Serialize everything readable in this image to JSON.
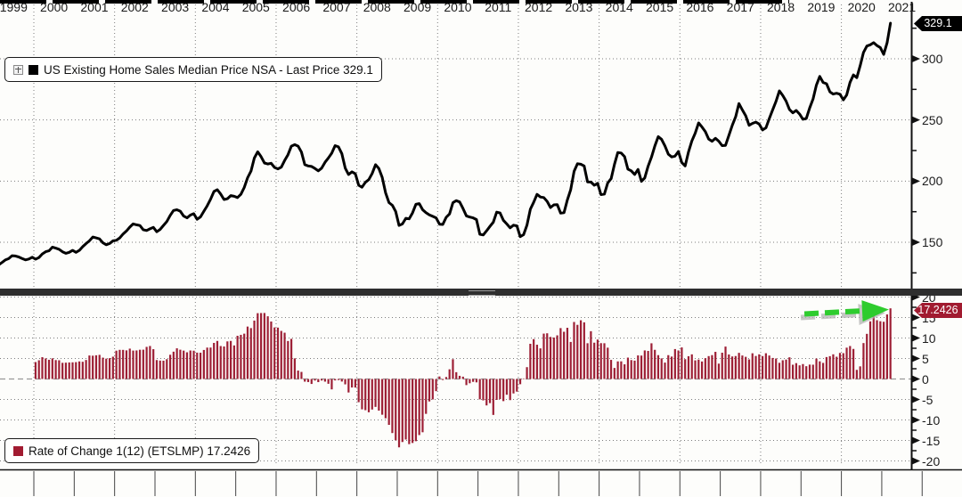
{
  "legend_top": {
    "label": "US Existing Home Sales Median Price NSA - Last Price 329.1",
    "series_color": "#000000"
  },
  "legend_bottom": {
    "label": "Rate of Change 1(12) (ETSLMP) 17.2426",
    "series_color": "#a11b30"
  },
  "price_tag": {
    "value": "329.1",
    "bg": "#000000"
  },
  "roc_tag": {
    "value": "17.2426",
    "bg": "#a11b30"
  },
  "annotation": {
    "green_arrow": {
      "type": "dashed-arrow",
      "direction": "up-right",
      "color": "#2ecc2e"
    }
  },
  "axes": {
    "top_ticks": [
      "300",
      "250",
      "200",
      "150"
    ],
    "top_tick_values": [
      300,
      250,
      200,
      150
    ],
    "top_minor_values": [
      325,
      275,
      225,
      175,
      125
    ],
    "bottom_ticks": [
      "20",
      "15",
      "10",
      "5",
      "0",
      "-5",
      "-10",
      "-15",
      "-20"
    ],
    "bottom_tick_values": [
      20,
      15,
      10,
      5,
      0,
      -5,
      -10,
      -15,
      -20
    ],
    "bottom_minor_values": [
      17.5,
      12.5,
      7.5,
      2.5,
      -2.5,
      -7.5,
      -12.5,
      -17.5
    ],
    "years": [
      "1999",
      "2000",
      "2001",
      "2002",
      "2003",
      "2004",
      "2005",
      "2006",
      "2007",
      "2008",
      "2009",
      "2010",
      "2011",
      "2012",
      "2013",
      "2014",
      "2015",
      "2016",
      "2017",
      "2018",
      "2019",
      "2020",
      "2021"
    ]
  },
  "chart_data": [
    {
      "type": "line",
      "title": "US Existing Home Sales Median Price NSA - Last Price 329.1",
      "x_start": "1999-01",
      "x_end": "2021-03",
      "frequency": "monthly",
      "line_color": "#000000",
      "ylim": [
        113,
        346
      ],
      "ytick_interval": 50,
      "grid": "dotted",
      "last_price": 329.1,
      "values": [
        130.8,
        131.5,
        133.4,
        135.5,
        136.6,
        139.0,
        138.8,
        138.0,
        136.8,
        135.6,
        136.3,
        137.8,
        136.2,
        137.5,
        140.5,
        142.3,
        143.0,
        146.0,
        145.2,
        144.3,
        142.2,
        141.0,
        141.8,
        143.4,
        141.8,
        143.4,
        146.4,
        148.9,
        151.2,
        154.3,
        153.6,
        152.8,
        149.6,
        148.0,
        149.0,
        151.2,
        151.6,
        153.6,
        156.8,
        159.3,
        162.4,
        165.0,
        164.3,
        163.7,
        160.3,
        159.6,
        161.0,
        162.2,
        158.6,
        160.5,
        163.8,
        167.0,
        172.0,
        176.0,
        176.6,
        175.4,
        171.4,
        170.0,
        172.2,
        173.4,
        168.8,
        170.8,
        175.4,
        179.8,
        185.2,
        191.5,
        193.0,
        189.5,
        185.0,
        185.6,
        188.2,
        187.6,
        186.6,
        189.2,
        194.8,
        202.8,
        208.2,
        218.8,
        224.0,
        220.0,
        214.8,
        214.0,
        214.6,
        211.2,
        210.0,
        211.4,
        216.8,
        221.6,
        228.6,
        229.8,
        228.6,
        223.8,
        213.4,
        212.4,
        212.0,
        210.4,
        208.4,
        210.6,
        215.4,
        219.0,
        222.8,
        229.0,
        228.0,
        222.4,
        210.6,
        205.4,
        207.6,
        206.0,
        196.6,
        195.0,
        199.0,
        201.2,
        206.2,
        213.4,
        210.4,
        203.0,
        190.4,
        182.4,
        180.2,
        175.2,
        163.8,
        165.0,
        169.6,
        169.2,
        174.0,
        181.0,
        181.6,
        176.6,
        174.2,
        172.4,
        171.2,
        170.0,
        164.8,
        164.6,
        170.4,
        173.2,
        182.4,
        184.0,
        183.0,
        177.6,
        171.6,
        170.6,
        170.0,
        168.6,
        156.6,
        156.0,
        159.4,
        163.0,
        166.4,
        174.6,
        174.0,
        168.0,
        165.0,
        161.8,
        164.0,
        163.4,
        154.6,
        156.2,
        164.0,
        177.0,
        182.6,
        189.2,
        187.0,
        186.6,
        183.4,
        178.4,
        180.6,
        180.8,
        173.8,
        174.2,
        184.5,
        193.0,
        208.0,
        214.2,
        213.8,
        212.4,
        199.4,
        199.2,
        196.6,
        198.2,
        189.0,
        189.4,
        198.6,
        202.0,
        213.6,
        223.4,
        223.0,
        220.0,
        209.8,
        208.4,
        205.4,
        209.6,
        199.8,
        202.6,
        212.2,
        219.6,
        228.8,
        236.4,
        234.2,
        228.8,
        222.0,
        219.8,
        220.4,
        224.2,
        215.2,
        212.4,
        224.0,
        232.8,
        239.2,
        247.6,
        244.2,
        240.4,
        234.4,
        232.6,
        235.0,
        232.6,
        229.0,
        229.2,
        237.4,
        245.6,
        252.6,
        263.4,
        258.2,
        253.4,
        245.6,
        247.2,
        248.2,
        246.6,
        241.8,
        243.6,
        251.0,
        258.2,
        265.2,
        273.8,
        270.0,
        265.4,
        258.6,
        255.8,
        257.8,
        254.8,
        250.6,
        251.2,
        259.8,
        267.2,
        278.4,
        285.6,
        280.6,
        279.6,
        273.0,
        271.2,
        271.8,
        271.0,
        266.4,
        270.4,
        280.7,
        286.8,
        284.6,
        294.4,
        305.2,
        310.4,
        311.4,
        313.2,
        310.8,
        309.2,
        303.6,
        313.0,
        329.1
      ]
    },
    {
      "type": "bar",
      "title": "Rate of Change 1(12) (ETSLMP) 17.2426",
      "derived": "values computed as 100*(price[i]/price[i-12]-1) from the line series above, monthly from 2000-01 to 2021-03",
      "bar_color": "#9d1f35",
      "ylim": [
        -21.5,
        20.3
      ],
      "ytick_interval": 5,
      "grid": "dotted",
      "last_value": 17.2426
    }
  ]
}
